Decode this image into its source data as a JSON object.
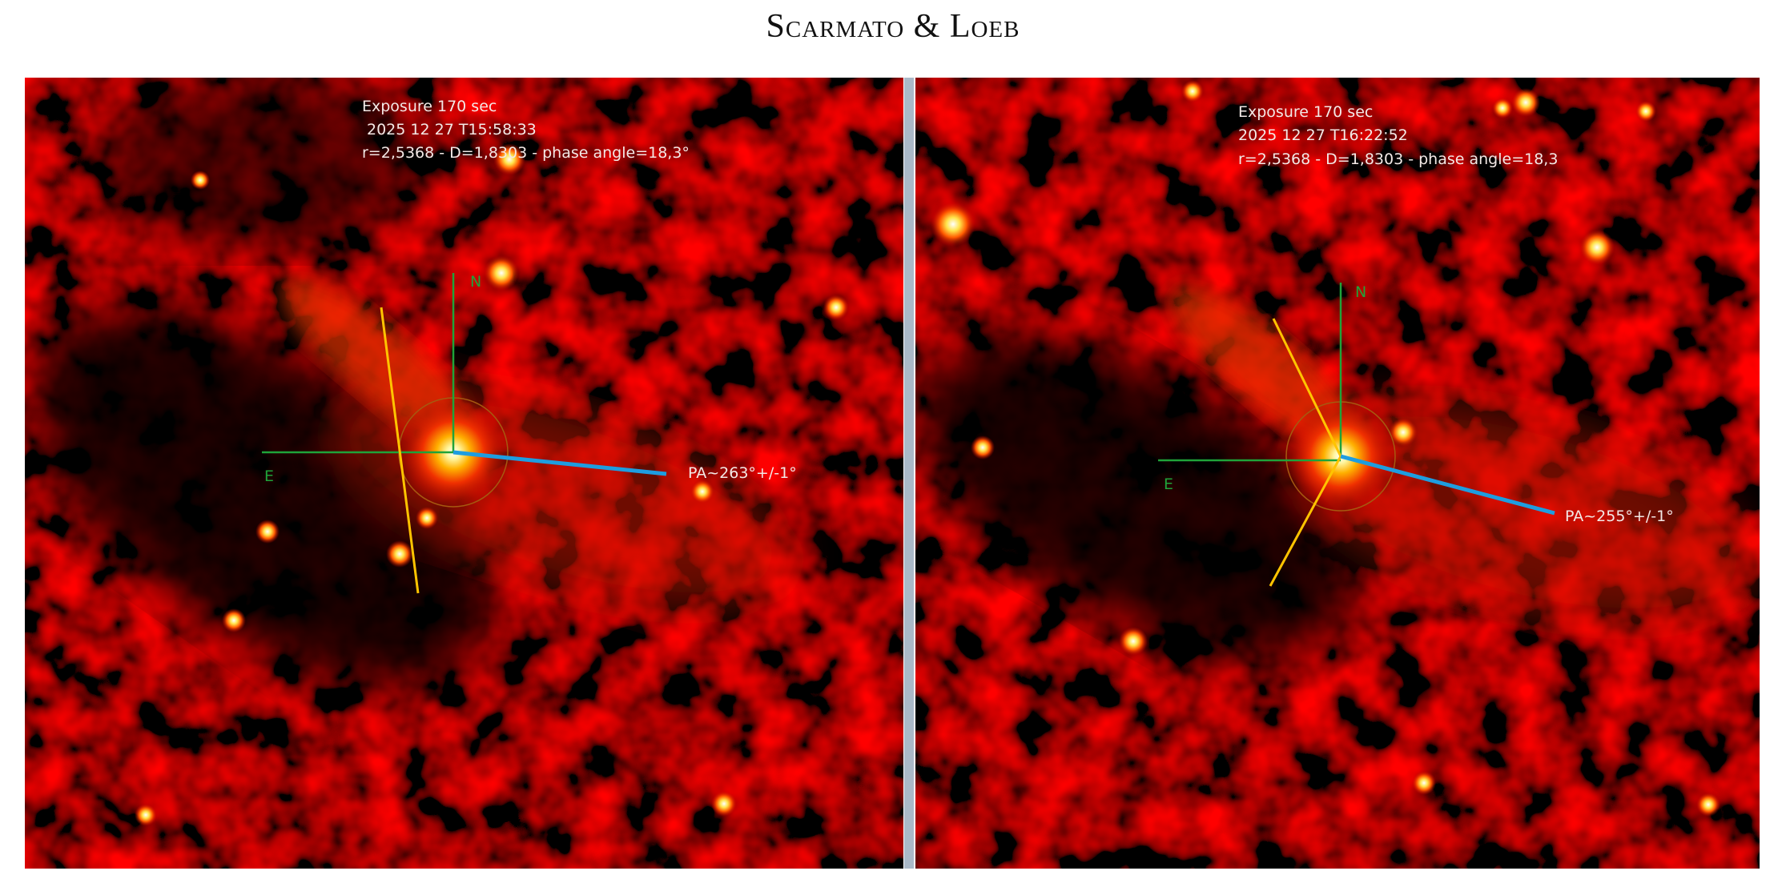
{
  "header": {
    "title": "Scarmato & Loeb"
  },
  "panels": [
    {
      "exposure": "Exposure 170 sec",
      "timestamp": "2025 12 27 T15:58:33",
      "parameters": "r=2,5368 - D=1,8303 - phase angle=18,3°",
      "north_label": "N",
      "east_label": "E",
      "position_angle": "PA~263°+/-1°"
    },
    {
      "exposure": "Exposure 170 sec",
      "timestamp": "2025 12 27 T16:22:52",
      "parameters": "r=2,5368 - D=1,8303 - phase angle=18,3",
      "north_label": "N",
      "east_label": "E",
      "position_angle": "PA~255°+/-1°"
    }
  ]
}
